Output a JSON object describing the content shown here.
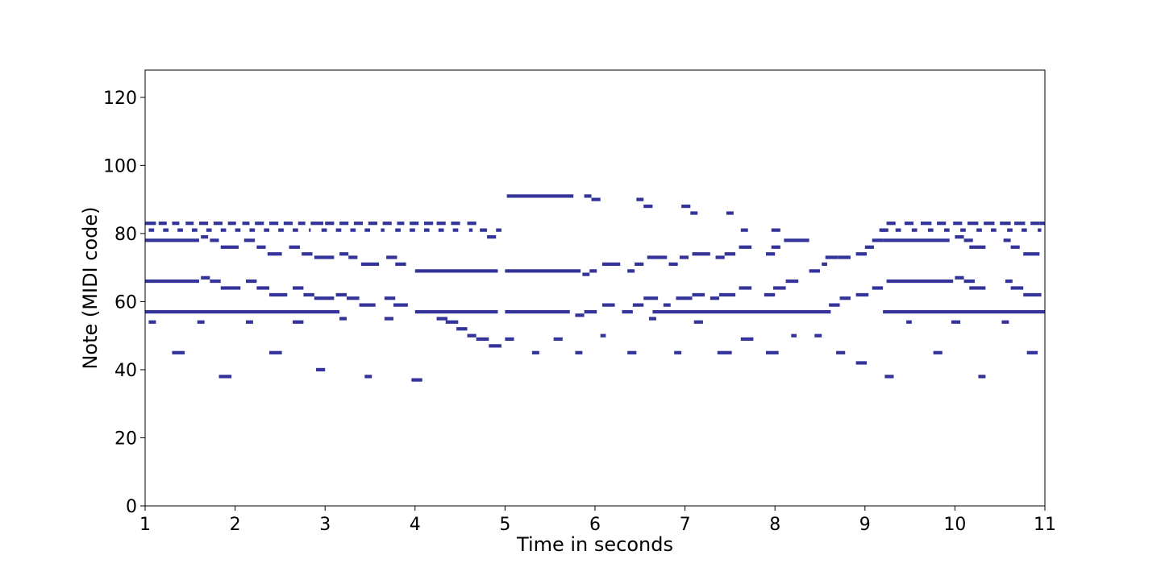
{
  "chart_data": {
    "type": "piano-roll",
    "title": "",
    "xlabel": "Time in seconds",
    "ylabel": "Note (MIDI code)",
    "xlim": [
      1,
      11
    ],
    "ylim": [
      0,
      128
    ],
    "xticks": [
      1,
      2,
      3,
      4,
      5,
      6,
      7,
      8,
      9,
      10,
      11
    ],
    "yticks": [
      0,
      20,
      40,
      60,
      80,
      100,
      120
    ],
    "grid": false,
    "note_color": "#333399",
    "notes": [
      [
        1.0,
        1.12,
        83
      ],
      [
        1.15,
        1.24,
        83
      ],
      [
        1.3,
        1.38,
        83
      ],
      [
        1.45,
        1.54,
        83
      ],
      [
        1.6,
        1.7,
        83
      ],
      [
        1.76,
        1.86,
        83
      ],
      [
        1.92,
        2.01,
        83
      ],
      [
        2.08,
        2.16,
        83
      ],
      [
        2.22,
        2.32,
        83
      ],
      [
        2.38,
        2.48,
        83
      ],
      [
        2.54,
        2.64,
        83
      ],
      [
        2.7,
        2.78,
        83
      ],
      [
        2.84,
        2.98,
        83
      ],
      [
        3.0,
        3.1,
        83
      ],
      [
        3.16,
        3.26,
        83
      ],
      [
        3.32,
        3.42,
        83
      ],
      [
        3.48,
        3.58,
        83
      ],
      [
        3.64,
        3.74,
        83
      ],
      [
        3.8,
        3.88,
        83
      ],
      [
        3.94,
        4.04,
        83
      ],
      [
        4.1,
        4.2,
        83
      ],
      [
        4.24,
        4.34,
        83
      ],
      [
        4.4,
        4.5,
        83
      ],
      [
        4.58,
        4.68,
        83
      ],
      [
        1.04,
        1.1,
        81
      ],
      [
        1.2,
        1.26,
        81
      ],
      [
        1.36,
        1.42,
        81
      ],
      [
        1.52,
        1.58,
        81
      ],
      [
        1.68,
        1.74,
        81
      ],
      [
        1.84,
        1.9,
        81
      ],
      [
        2.0,
        2.06,
        81
      ],
      [
        2.16,
        2.22,
        81
      ],
      [
        2.32,
        2.38,
        81
      ],
      [
        2.48,
        2.54,
        81
      ],
      [
        2.64,
        2.7,
        81
      ],
      [
        2.82,
        2.84,
        81
      ],
      [
        2.96,
        3.02,
        81
      ],
      [
        3.12,
        3.18,
        81
      ],
      [
        3.28,
        3.34,
        81
      ],
      [
        3.44,
        3.5,
        81
      ],
      [
        3.62,
        3.66,
        81
      ],
      [
        3.78,
        3.84,
        81
      ],
      [
        3.94,
        4.0,
        81
      ],
      [
        4.1,
        4.16,
        81
      ],
      [
        4.26,
        4.32,
        81
      ],
      [
        4.42,
        4.48,
        81
      ],
      [
        4.6,
        4.64,
        81
      ],
      [
        4.72,
        4.8,
        81
      ],
      [
        4.9,
        4.96,
        81
      ],
      [
        1.0,
        1.6,
        78
      ],
      [
        1.62,
        1.7,
        79
      ],
      [
        1.72,
        1.82,
        78
      ],
      [
        1.84,
        2.04,
        76
      ],
      [
        2.1,
        2.22,
        78
      ],
      [
        2.24,
        2.34,
        76
      ],
      [
        2.36,
        2.52,
        74
      ],
      [
        2.6,
        2.72,
        76
      ],
      [
        2.74,
        2.86,
        74
      ],
      [
        2.88,
        3.1,
        73
      ],
      [
        3.16,
        3.26,
        74
      ],
      [
        3.26,
        3.36,
        73
      ],
      [
        3.4,
        3.6,
        71
      ],
      [
        3.68,
        3.8,
        73
      ],
      [
        3.78,
        3.9,
        71
      ],
      [
        4.8,
        4.9,
        79
      ],
      [
        1.0,
        1.6,
        66
      ],
      [
        1.62,
        1.72,
        67
      ],
      [
        1.72,
        1.84,
        66
      ],
      [
        1.84,
        2.06,
        64
      ],
      [
        2.12,
        2.24,
        66
      ],
      [
        2.24,
        2.38,
        64
      ],
      [
        2.38,
        2.58,
        62
      ],
      [
        2.64,
        2.76,
        64
      ],
      [
        2.76,
        2.88,
        62
      ],
      [
        2.88,
        3.1,
        61
      ],
      [
        3.12,
        3.24,
        62
      ],
      [
        3.24,
        3.38,
        61
      ],
      [
        3.38,
        3.56,
        59
      ],
      [
        3.66,
        3.78,
        61
      ],
      [
        3.76,
        3.92,
        59
      ],
      [
        1.0,
        3.16,
        57
      ],
      [
        3.16,
        3.24,
        55
      ],
      [
        3.66,
        3.76,
        55
      ],
      [
        4.0,
        4.92,
        57
      ],
      [
        4.24,
        4.36,
        55
      ],
      [
        4.34,
        4.48,
        54
      ],
      [
        4.46,
        4.58,
        52
      ],
      [
        4.58,
        4.68,
        50
      ],
      [
        4.68,
        4.82,
        49
      ],
      [
        4.82,
        4.96,
        47
      ],
      [
        5.0,
        5.1,
        49
      ],
      [
        1.04,
        1.12,
        54
      ],
      [
        1.58,
        1.66,
        54
      ],
      [
        2.12,
        2.2,
        54
      ],
      [
        2.64,
        2.76,
        54
      ],
      [
        1.3,
        1.44,
        45
      ],
      [
        2.38,
        2.52,
        45
      ],
      [
        1.82,
        1.96,
        38
      ],
      [
        2.9,
        3.0,
        40
      ],
      [
        3.44,
        3.52,
        38
      ],
      [
        3.96,
        4.08,
        37
      ],
      [
        4.0,
        4.92,
        69
      ],
      [
        5.0,
        5.84,
        69
      ],
      [
        5.02,
        5.76,
        91
      ],
      [
        5.0,
        5.72,
        57
      ],
      [
        5.3,
        5.38,
        45
      ],
      [
        5.54,
        5.64,
        49
      ],
      [
        5.88,
        5.96,
        91
      ],
      [
        5.96,
        6.06,
        90
      ],
      [
        6.46,
        6.54,
        90
      ],
      [
        6.54,
        6.64,
        88
      ],
      [
        6.96,
        7.06,
        88
      ],
      [
        7.06,
        7.14,
        86
      ],
      [
        7.46,
        7.54,
        86
      ],
      [
        5.86,
        5.94,
        68
      ],
      [
        5.94,
        6.02,
        69
      ],
      [
        6.08,
        6.28,
        71
      ],
      [
        6.36,
        6.44,
        69
      ],
      [
        6.44,
        6.54,
        71
      ],
      [
        6.58,
        6.8,
        73
      ],
      [
        6.82,
        6.92,
        71
      ],
      [
        6.94,
        7.04,
        73
      ],
      [
        7.08,
        7.28,
        74
      ],
      [
        7.34,
        7.44,
        73
      ],
      [
        7.44,
        7.56,
        74
      ],
      [
        7.6,
        7.74,
        76
      ],
      [
        7.62,
        7.7,
        81
      ],
      [
        5.78,
        5.88,
        56
      ],
      [
        5.88,
        6.02,
        57
      ],
      [
        6.08,
        6.22,
        59
      ],
      [
        6.3,
        6.42,
        57
      ],
      [
        6.42,
        6.54,
        59
      ],
      [
        6.54,
        6.7,
        61
      ],
      [
        6.6,
        6.68,
        55
      ],
      [
        6.64,
        8.62,
        57
      ],
      [
        6.76,
        6.84,
        59
      ],
      [
        6.9,
        7.08,
        61
      ],
      [
        7.08,
        7.22,
        62
      ],
      [
        7.28,
        7.38,
        61
      ],
      [
        7.38,
        7.56,
        62
      ],
      [
        7.6,
        7.74,
        64
      ],
      [
        5.78,
        5.86,
        45
      ],
      [
        6.06,
        6.12,
        50
      ],
      [
        6.36,
        6.46,
        45
      ],
      [
        6.88,
        6.96,
        45
      ],
      [
        7.1,
        7.2,
        54
      ],
      [
        7.36,
        7.52,
        45
      ],
      [
        7.62,
        7.76,
        49
      ],
      [
        7.9,
        8.0,
        74
      ],
      [
        7.96,
        8.06,
        76
      ],
      [
        7.96,
        8.06,
        81
      ],
      [
        8.1,
        8.38,
        78
      ],
      [
        8.38,
        8.5,
        69
      ],
      [
        8.52,
        8.58,
        71
      ],
      [
        8.56,
        8.7,
        73
      ],
      [
        8.7,
        8.84,
        73
      ],
      [
        7.88,
        8.0,
        62
      ],
      [
        7.98,
        8.12,
        64
      ],
      [
        8.12,
        8.26,
        66
      ],
      [
        8.6,
        8.72,
        59
      ],
      [
        8.72,
        8.84,
        61
      ],
      [
        7.9,
        8.04,
        45
      ],
      [
        8.18,
        8.24,
        50
      ],
      [
        8.44,
        8.52,
        50
      ],
      [
        8.68,
        8.78,
        45
      ],
      [
        8.9,
        9.02,
        42
      ],
      [
        8.9,
        9.02,
        74
      ],
      [
        9.0,
        9.1,
        76
      ],
      [
        9.08,
        9.2,
        78
      ],
      [
        9.16,
        9.24,
        81
      ],
      [
        8.9,
        9.04,
        62
      ],
      [
        9.08,
        9.2,
        64
      ],
      [
        9.22,
        9.32,
        38
      ],
      [
        9.24,
        9.34,
        83
      ],
      [
        9.44,
        9.54,
        83
      ],
      [
        9.62,
        9.74,
        83
      ],
      [
        9.8,
        9.9,
        83
      ],
      [
        9.98,
        10.08,
        83
      ],
      [
        10.14,
        10.26,
        83
      ],
      [
        10.32,
        10.44,
        83
      ],
      [
        10.5,
        10.62,
        83
      ],
      [
        10.66,
        10.78,
        83
      ],
      [
        10.84,
        10.94,
        83
      ],
      [
        10.94,
        11.0,
        83
      ],
      [
        9.18,
        9.26,
        81
      ],
      [
        9.34,
        9.4,
        81
      ],
      [
        9.52,
        9.58,
        81
      ],
      [
        9.7,
        9.76,
        81
      ],
      [
        9.88,
        9.94,
        81
      ],
      [
        10.06,
        10.12,
        81
      ],
      [
        10.24,
        10.3,
        81
      ],
      [
        10.4,
        10.46,
        81
      ],
      [
        10.58,
        10.64,
        81
      ],
      [
        10.74,
        10.8,
        81
      ],
      [
        10.92,
        10.96,
        81
      ],
      [
        9.2,
        9.94,
        78
      ],
      [
        10.0,
        10.1,
        79
      ],
      [
        10.1,
        10.2,
        78
      ],
      [
        10.16,
        10.34,
        76
      ],
      [
        10.54,
        10.62,
        78
      ],
      [
        10.62,
        10.72,
        76
      ],
      [
        10.76,
        10.94,
        74
      ],
      [
        9.24,
        9.98,
        66
      ],
      [
        10.0,
        10.1,
        67
      ],
      [
        10.1,
        10.22,
        66
      ],
      [
        10.16,
        10.34,
        64
      ],
      [
        10.56,
        10.64,
        66
      ],
      [
        10.62,
        10.76,
        64
      ],
      [
        10.76,
        10.96,
        62
      ],
      [
        9.2,
        11.0,
        57
      ],
      [
        9.46,
        9.52,
        54
      ],
      [
        9.96,
        10.06,
        54
      ],
      [
        10.52,
        10.6,
        54
      ],
      [
        9.76,
        9.86,
        45
      ],
      [
        10.26,
        10.34,
        38
      ],
      [
        10.8,
        10.92,
        45
      ]
    ]
  }
}
